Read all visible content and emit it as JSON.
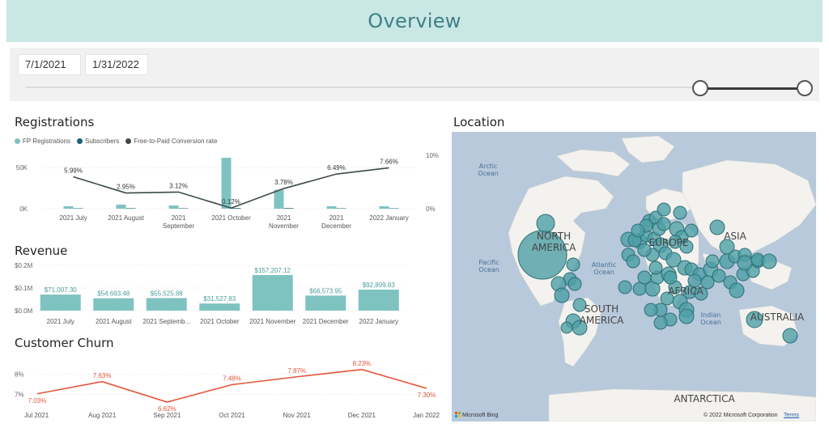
{
  "header": {
    "title": "Overview"
  },
  "slicer": {
    "start_date": "7/1/2021",
    "end_date": "1/31/2022"
  },
  "registrations": {
    "title": "Registrations",
    "legend": [
      "FP Registrations",
      "Subscribers",
      "Free-to-Paid Conversion rate"
    ]
  },
  "revenue": {
    "title": "Revenue"
  },
  "churn": {
    "title": "Customer Churn"
  },
  "location": {
    "title": "Location",
    "labels": {
      "arctic": "Arctic\nOcean",
      "pacific": "Pacific\nOcean",
      "atlantic": "Atlantic\nOcean",
      "indian": "Indian\nOcean",
      "north_america": "NORTH\nAMERICA",
      "south_america": "SOUTH\nAMERICA",
      "europe": "EUROPE",
      "asia": "ASIA",
      "africa": "AFRICA",
      "australia": "AUSTRALIA",
      "antarctica": "ANTARCTICA"
    },
    "bing": "Microsoft Bing",
    "copyright": "© 2022 Microsoft Corporation",
    "terms": "Terms"
  },
  "colors": {
    "teal": "#7fc3c1",
    "navy": "#1f5f7a",
    "line": "#3d4a4a",
    "churn": "#e6553a",
    "bubble": "#4d9fa6"
  },
  "chart_data": [
    {
      "type": "bar",
      "title": "Registrations",
      "categories": [
        "2021 July",
        "2021 August",
        "2021 September",
        "2021 October",
        "2021 November",
        "2021 December",
        "2022 January"
      ],
      "category_lines": [
        [
          "2021 July"
        ],
        [
          "2021 August"
        ],
        [
          "2021",
          "September"
        ],
        [
          "2021 October"
        ],
        [
          "2021",
          "November"
        ],
        [
          "2021",
          "December"
        ],
        [
          "2022 January"
        ]
      ],
      "series": [
        {
          "name": "FP Registrations",
          "values": [
            3000,
            5000,
            4000,
            62000,
            23000,
            3000,
            3000
          ]
        },
        {
          "name": "Subscribers",
          "values": [
            500,
            600,
            500,
            800,
            700,
            500,
            500
          ]
        }
      ],
      "line_series": {
        "name": "Free-to-Paid Conversion rate",
        "values": [
          5.99,
          2.95,
          3.12,
          0.12,
          3.78,
          6.49,
          7.66
        ],
        "labels": [
          "5.99%",
          "2.95%",
          "3.12%",
          "0.12%",
          "3.78%",
          "6.49%",
          "7.66%"
        ]
      },
      "y_ticks": [
        "0K",
        "50K"
      ],
      "y_tick_values": [
        0,
        50000
      ],
      "ylim": [
        0,
        65000
      ],
      "y2_ticks": [
        "0%",
        "10%"
      ],
      "y2_tick_values": [
        0,
        10
      ],
      "y2lim": [
        0,
        10
      ]
    },
    {
      "type": "bar",
      "title": "Revenue",
      "categories": [
        "2021 July",
        "2021 August",
        "2021 Septemb...",
        "2021 October",
        "2021 November",
        "2021 December",
        "2022 January"
      ],
      "values": [
        71007.3,
        54693.48,
        55525.88,
        31527.83,
        157207.12,
        66573.95,
        92899.83
      ],
      "labels": [
        "$71,007.30",
        "$54,693.48",
        "$55,525.88",
        "$31,527.83",
        "$157,207.12",
        "$66,573.95",
        "$92,899.83"
      ],
      "y_ticks": [
        "$0.0M",
        "$0.1M",
        "$0.2M"
      ],
      "y_tick_values": [
        0,
        100000,
        200000
      ],
      "ylim": [
        0,
        200000
      ]
    },
    {
      "type": "line",
      "title": "Customer Churn",
      "categories": [
        "Jul 2021",
        "Aug 2021",
        "Sep 2021",
        "Oct 2021",
        "Nov 2021",
        "Dec 2021",
        "Jan 2022"
      ],
      "values": [
        7.03,
        7.63,
        6.62,
        7.48,
        7.87,
        8.23,
        7.3
      ],
      "labels": [
        "7.03%",
        "7.63%",
        "6.62%",
        "7.48%",
        "7.87%",
        "8.23%",
        "7.30%"
      ],
      "y_ticks": [
        "7%",
        "8%"
      ],
      "y_tick_values": [
        7,
        8
      ],
      "ylim": [
        6.5,
        8.5
      ]
    }
  ]
}
